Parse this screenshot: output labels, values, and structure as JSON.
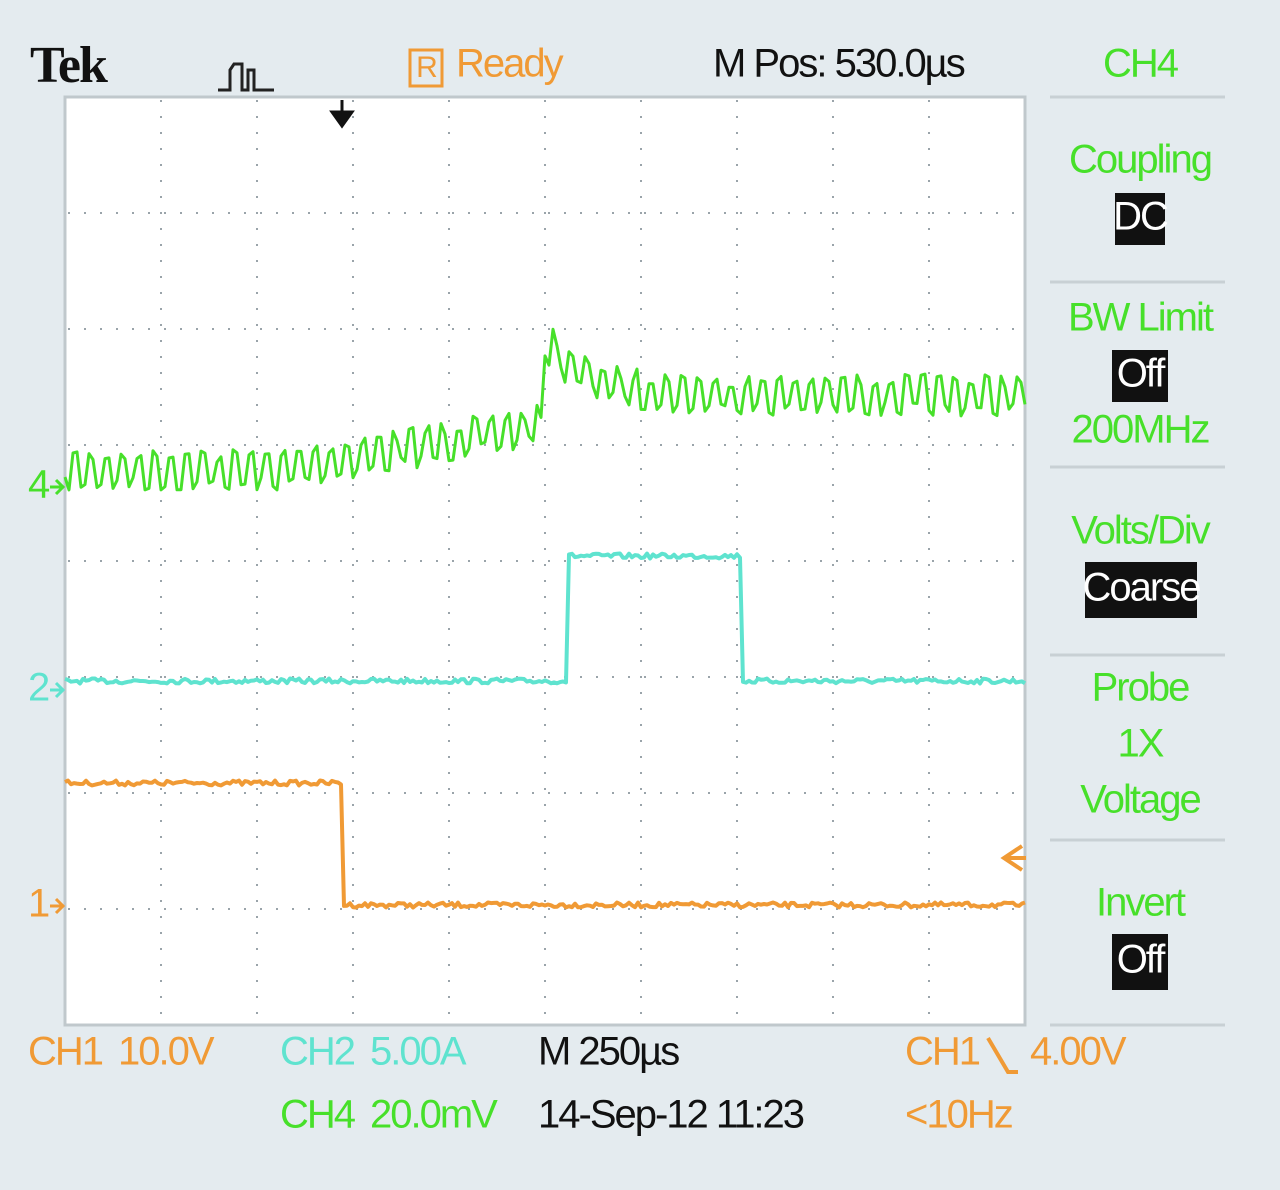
{
  "header": {
    "brand": "Tek",
    "status_icon": "R",
    "status": "Ready",
    "position": "M Pos: 530.0µs"
  },
  "menu": {
    "channel": "CH4",
    "coupling": {
      "label": "Coupling",
      "value": "DC"
    },
    "bw_limit": {
      "label": "BW Limit",
      "value": "Off",
      "extra": "200MHz"
    },
    "volts_div": {
      "label": "Volts/Div",
      "value": "Coarse"
    },
    "probe": {
      "label": "Probe",
      "lines": [
        "1X",
        "Voltage"
      ]
    },
    "invert": {
      "label": "Invert",
      "value": "Off"
    }
  },
  "markers": {
    "ch4": "4",
    "ch2": "2",
    "ch1": "1"
  },
  "footer": {
    "ch1": {
      "name": "CH1",
      "scale": "10.0V"
    },
    "ch2": {
      "name": "CH2",
      "scale": "5.00A"
    },
    "ch4": {
      "name": "CH4",
      "scale": "20.0mV"
    },
    "timebase": "M 250µs",
    "timestamp": "14-Sep-12 11:23",
    "trigger": {
      "source": "CH1",
      "level": "4.00V",
      "frequency": "<10Hz"
    }
  }
}
